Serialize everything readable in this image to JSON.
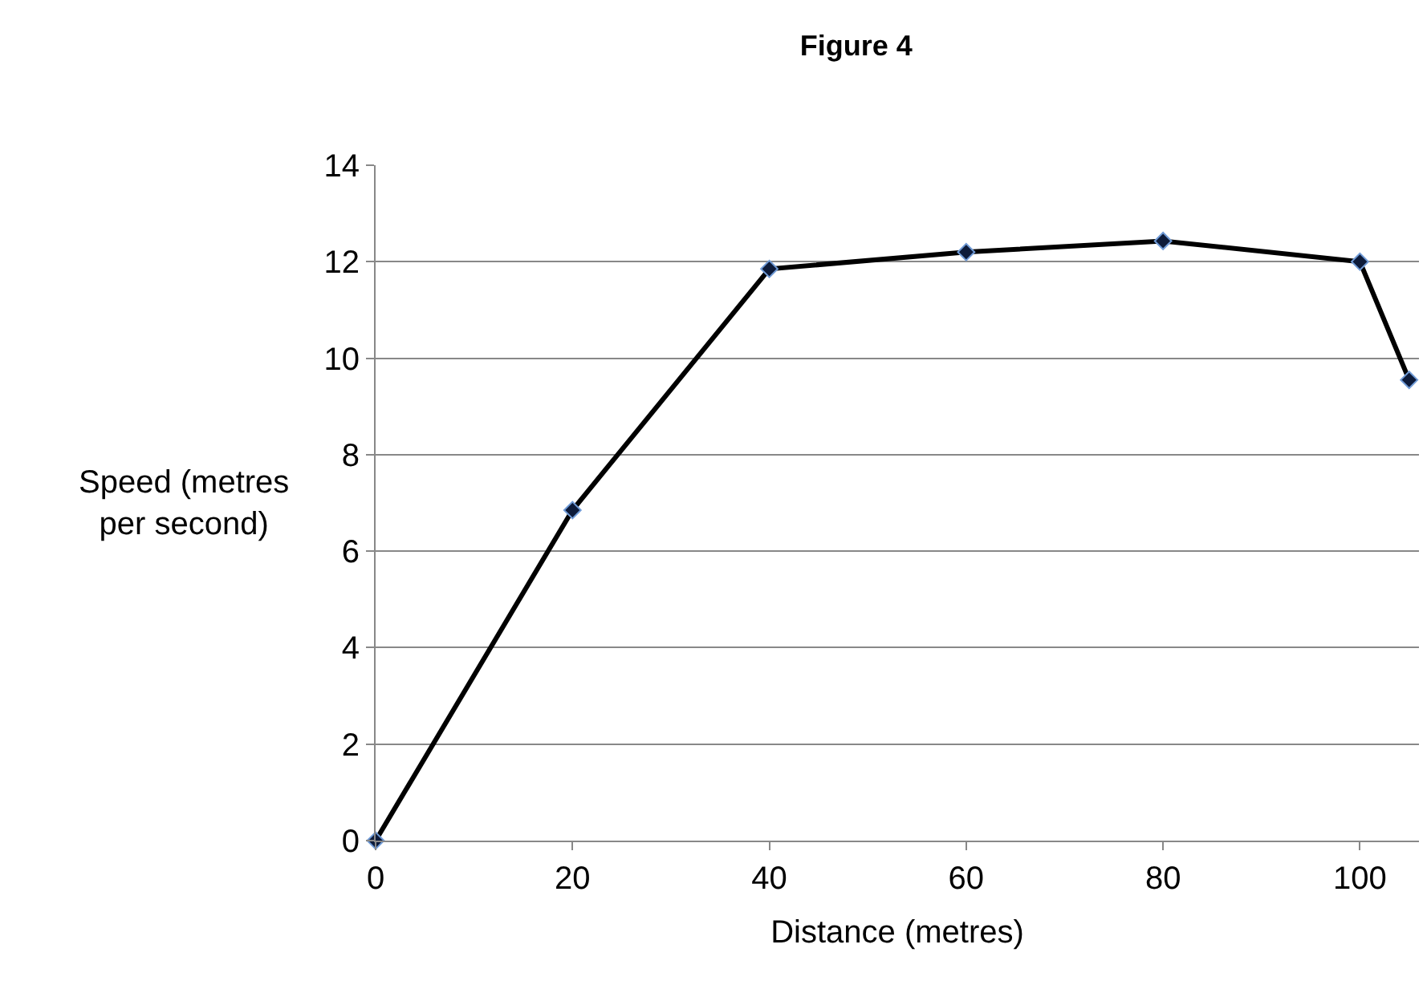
{
  "chart_data": {
    "type": "line",
    "title": "Figure 4",
    "xlabel": "Distance (metres)",
    "ylabel": "Speed (metres per second)",
    "x": [
      0,
      20,
      40,
      60,
      80,
      100,
      105
    ],
    "series": [
      {
        "color": "#000000",
        "values": [
          0,
          6.85,
          11.85,
          12.2,
          12.43,
          12.0,
          9.55
        ]
      }
    ],
    "xlim": [
      0,
      106
    ],
    "xticks": [
      0,
      20,
      40,
      60,
      80,
      100
    ],
    "ylim": [
      0,
      14
    ],
    "yticks": [
      0,
      2,
      4,
      6,
      8,
      10,
      12,
      14
    ],
    "grid": "y",
    "marker": "diamond",
    "line_style": "solid",
    "legend": false
  }
}
